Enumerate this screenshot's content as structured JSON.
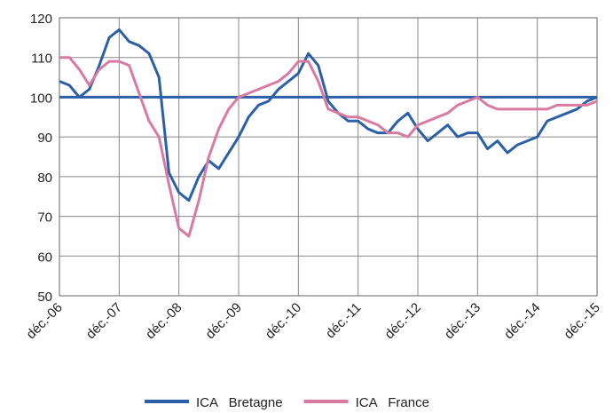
{
  "chart_data": {
    "type": "line",
    "categories": [
      "déc.-06",
      null,
      null,
      null,
      null,
      null,
      "déc.-07",
      null,
      null,
      null,
      null,
      null,
      "déc.-08",
      null,
      null,
      null,
      null,
      null,
      "déc.-09",
      null,
      null,
      null,
      null,
      null,
      "déc.-10",
      null,
      null,
      null,
      null,
      null,
      "déc.-11",
      null,
      null,
      null,
      null,
      null,
      "déc.-12",
      null,
      null,
      null,
      null,
      null,
      "déc.-13",
      null,
      null,
      null,
      null,
      null,
      "déc.-14",
      null,
      null,
      null,
      null,
      null,
      "déc.-15"
    ],
    "series": [
      {
        "name": "ICA   Bretagne",
        "color": "#2b5fa8",
        "values": [
          104,
          103,
          100,
          102,
          108,
          115,
          117,
          114,
          113,
          111,
          105,
          81,
          76,
          74,
          80,
          84,
          82,
          86,
          90,
          95,
          98,
          99,
          102,
          104,
          106,
          111,
          108,
          99,
          96,
          94,
          94,
          92,
          91,
          91,
          94,
          96,
          92,
          89,
          91,
          93,
          90,
          91,
          91,
          87,
          89,
          86,
          88,
          89,
          90,
          94,
          95,
          96,
          97,
          99,
          100
        ]
      },
      {
        "name": "ICA   France",
        "color": "#d97aa3",
        "values": [
          110,
          110,
          107,
          103,
          107,
          109,
          109,
          108,
          101,
          94,
          90,
          78,
          67,
          65,
          74,
          85,
          92,
          97,
          100,
          101,
          102,
          103,
          104,
          106,
          109,
          109,
          104,
          97,
          96,
          95,
          95,
          94,
          93,
          91,
          91,
          90,
          93,
          94,
          95,
          96,
          98,
          99,
          100,
          98,
          97,
          97,
          97,
          97,
          97,
          97,
          98,
          98,
          98,
          98,
          99
        ]
      }
    ],
    "reference_line": {
      "value": 100,
      "color": "#2b5fa8"
    },
    "ylim": [
      50,
      120
    ],
    "yticks": [
      50,
      60,
      70,
      80,
      90,
      100,
      110,
      120
    ],
    "grid": true,
    "legend": "bottom"
  }
}
